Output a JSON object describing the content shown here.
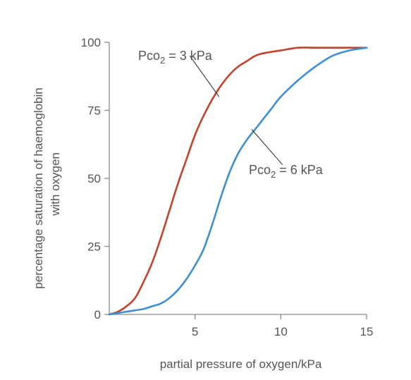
{
  "chart_data": {
    "type": "line",
    "title": "",
    "xlabel": "partial pressure of oxygen/kPa",
    "ylabel_line1": "percentage saturation of haemoglobin",
    "ylabel_line2": "with oxygen",
    "xlim": [
      0,
      15
    ],
    "ylim": [
      0,
      100
    ],
    "x_ticks": [
      5,
      10,
      15
    ],
    "y_ticks": [
      0,
      25,
      50,
      75,
      100
    ],
    "grid": false,
    "colors": {
      "axis": "#8a8a8a",
      "text": "#555555",
      "pointer": "#333333"
    },
    "series": [
      {
        "label_prefix": "Pco",
        "label_sub": "2",
        "label_suffix": " = 3 kPa",
        "color": "#c0442c",
        "points": [
          [
            0.0,
            0
          ],
          [
            0.5,
            1
          ],
          [
            1.0,
            3
          ],
          [
            1.5,
            6
          ],
          [
            2.0,
            12
          ],
          [
            2.5,
            19
          ],
          [
            3.0,
            28
          ],
          [
            3.5,
            38
          ],
          [
            4.0,
            48
          ],
          [
            4.5,
            57
          ],
          [
            5.0,
            66
          ],
          [
            5.5,
            73
          ],
          [
            6.0,
            79
          ],
          [
            6.5,
            84
          ],
          [
            7.0,
            88
          ],
          [
            7.5,
            91
          ],
          [
            8.0,
            93
          ],
          [
            8.5,
            95
          ],
          [
            9.0,
            96
          ],
          [
            10.0,
            97
          ],
          [
            11.0,
            98
          ],
          [
            12.0,
            98
          ],
          [
            13.0,
            98
          ],
          [
            14.0,
            98
          ],
          [
            15.0,
            98
          ]
        ],
        "pointer_at": [
          6.4,
          80
        ],
        "pointer_from": [
          4.7,
          95
        ]
      },
      {
        "label_prefix": "Pco",
        "label_sub": "2",
        "label_suffix": " = 6 kPa",
        "color": "#3d8fd1",
        "points": [
          [
            0.0,
            0
          ],
          [
            0.5,
            0.5
          ],
          [
            1.0,
            1
          ],
          [
            1.5,
            1.5
          ],
          [
            2.0,
            2
          ],
          [
            2.5,
            3
          ],
          [
            3.0,
            4
          ],
          [
            3.5,
            6
          ],
          [
            4.0,
            9
          ],
          [
            4.5,
            13
          ],
          [
            5.0,
            18
          ],
          [
            5.5,
            24
          ],
          [
            6.0,
            33
          ],
          [
            6.5,
            43
          ],
          [
            7.0,
            52
          ],
          [
            7.5,
            59
          ],
          [
            8.0,
            64
          ],
          [
            8.5,
            68
          ],
          [
            9.0,
            72
          ],
          [
            9.5,
            76
          ],
          [
            10.0,
            80
          ],
          [
            11.0,
            86
          ],
          [
            12.0,
            91
          ],
          [
            13.0,
            95
          ],
          [
            14.0,
            97
          ],
          [
            15.0,
            98
          ]
        ],
        "pointer_at": [
          8.3,
          68
        ],
        "pointer_from": [
          10.1,
          55
        ]
      }
    ]
  }
}
